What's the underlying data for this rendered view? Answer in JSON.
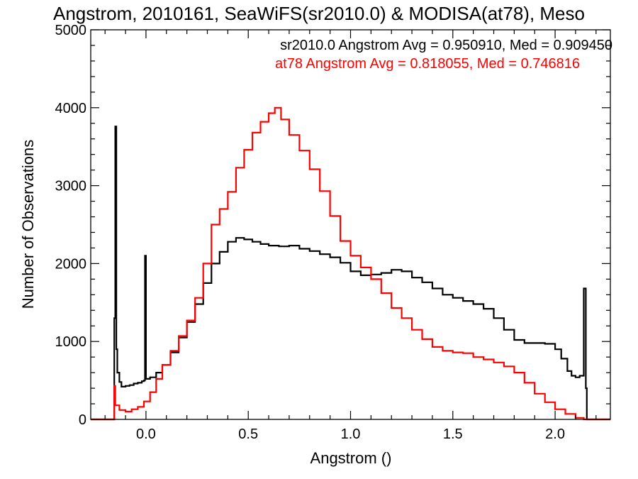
{
  "chart_data": {
    "type": "line",
    "step": true,
    "title": "Angstrom, 2010161, SeaWiFS(sr2010.0) & MODISA(at78), Meso",
    "xlabel": "Angstrom ()",
    "ylabel": "Number of Observations",
    "xlim": [
      -0.27,
      2.27
    ],
    "ylim": [
      0,
      5000
    ],
    "x_ticks": [
      0.0,
      0.5,
      1.0,
      1.5,
      2.0
    ],
    "x_tick_labels": [
      "0.0",
      "0.5",
      "1.0",
      "1.5",
      "2.0"
    ],
    "y_ticks": [
      0,
      1000,
      2000,
      3000,
      4000,
      5000
    ],
    "y_tick_labels": [
      "0",
      "1000",
      "2000",
      "3000",
      "4000",
      "5000"
    ],
    "grid": false,
    "annotations": [
      {
        "text": "sr2010.0 Angstrom Avg = 0.950910, Med = 0.909450",
        "color": "#000000"
      },
      {
        "text": "at78 Angstrom Avg = 0.818055, Med = 0.746816",
        "color": "#ff0000"
      }
    ],
    "series": [
      {
        "color": "#000000",
        "points": [
          [
            -0.27,
            0
          ],
          [
            -0.16,
            0
          ],
          [
            -0.155,
            1300
          ],
          [
            -0.15,
            3760
          ],
          [
            -0.145,
            900
          ],
          [
            -0.14,
            600
          ],
          [
            -0.13,
            480
          ],
          [
            -0.12,
            420
          ],
          [
            -0.1,
            430
          ],
          [
            -0.08,
            440
          ],
          [
            -0.06,
            460
          ],
          [
            -0.04,
            470
          ],
          [
            -0.02,
            490
          ],
          [
            -0.01,
            500
          ],
          [
            -0.005,
            2100
          ],
          [
            0.0,
            520
          ],
          [
            0.02,
            540
          ],
          [
            0.05,
            600
          ],
          [
            0.08,
            700
          ],
          [
            0.12,
            860
          ],
          [
            0.16,
            1050
          ],
          [
            0.2,
            1250
          ],
          [
            0.24,
            1480
          ],
          [
            0.28,
            1750
          ],
          [
            0.32,
            2000
          ],
          [
            0.36,
            2150
          ],
          [
            0.4,
            2280
          ],
          [
            0.44,
            2330
          ],
          [
            0.48,
            2310
          ],
          [
            0.52,
            2280
          ],
          [
            0.56,
            2250
          ],
          [
            0.6,
            2230
          ],
          [
            0.65,
            2220
          ],
          [
            0.7,
            2230
          ],
          [
            0.75,
            2190
          ],
          [
            0.8,
            2160
          ],
          [
            0.85,
            2120
          ],
          [
            0.9,
            2080
          ],
          [
            0.95,
            2010
          ],
          [
            1.0,
            1900
          ],
          [
            1.05,
            1850
          ],
          [
            1.1,
            1860
          ],
          [
            1.15,
            1880
          ],
          [
            1.2,
            1920
          ],
          [
            1.25,
            1900
          ],
          [
            1.3,
            1820
          ],
          [
            1.35,
            1760
          ],
          [
            1.4,
            1680
          ],
          [
            1.45,
            1600
          ],
          [
            1.5,
            1560
          ],
          [
            1.55,
            1520
          ],
          [
            1.6,
            1480
          ],
          [
            1.65,
            1420
          ],
          [
            1.7,
            1300
          ],
          [
            1.75,
            1150
          ],
          [
            1.8,
            1020
          ],
          [
            1.85,
            980
          ],
          [
            1.9,
            980
          ],
          [
            1.95,
            970
          ],
          [
            2.0,
            900
          ],
          [
            2.03,
            780
          ],
          [
            2.06,
            620
          ],
          [
            2.08,
            560
          ],
          [
            2.1,
            540
          ],
          [
            2.12,
            560
          ],
          [
            2.14,
            1680
          ],
          [
            2.15,
            400
          ],
          [
            2.155,
            0
          ],
          [
            2.27,
            0
          ]
        ]
      },
      {
        "color": "#ff0000",
        "points": [
          [
            -0.27,
            0
          ],
          [
            -0.16,
            0
          ],
          [
            -0.155,
            430
          ],
          [
            -0.15,
            180
          ],
          [
            -0.13,
            120
          ],
          [
            -0.1,
            100
          ],
          [
            -0.07,
            130
          ],
          [
            -0.04,
            160
          ],
          [
            -0.01,
            230
          ],
          [
            0.02,
            350
          ],
          [
            0.05,
            520
          ],
          [
            0.08,
            700
          ],
          [
            0.12,
            880
          ],
          [
            0.16,
            1070
          ],
          [
            0.2,
            1270
          ],
          [
            0.24,
            1560
          ],
          [
            0.28,
            2000
          ],
          [
            0.32,
            2500
          ],
          [
            0.36,
            2700
          ],
          [
            0.4,
            2920
          ],
          [
            0.44,
            3230
          ],
          [
            0.48,
            3460
          ],
          [
            0.52,
            3680
          ],
          [
            0.56,
            3820
          ],
          [
            0.6,
            3930
          ],
          [
            0.63,
            4000
          ],
          [
            0.66,
            3850
          ],
          [
            0.7,
            3650
          ],
          [
            0.75,
            3450
          ],
          [
            0.8,
            3210
          ],
          [
            0.85,
            2930
          ],
          [
            0.9,
            2610
          ],
          [
            0.95,
            2290
          ],
          [
            1.0,
            2100
          ],
          [
            1.05,
            1950
          ],
          [
            1.1,
            1800
          ],
          [
            1.15,
            1620
          ],
          [
            1.2,
            1430
          ],
          [
            1.25,
            1300
          ],
          [
            1.3,
            1150
          ],
          [
            1.35,
            1030
          ],
          [
            1.4,
            930
          ],
          [
            1.45,
            880
          ],
          [
            1.5,
            860
          ],
          [
            1.55,
            850
          ],
          [
            1.6,
            800
          ],
          [
            1.65,
            770
          ],
          [
            1.7,
            730
          ],
          [
            1.75,
            680
          ],
          [
            1.8,
            600
          ],
          [
            1.85,
            470
          ],
          [
            1.9,
            330
          ],
          [
            1.95,
            220
          ],
          [
            2.0,
            130
          ],
          [
            2.05,
            70
          ],
          [
            2.1,
            20
          ],
          [
            2.14,
            0
          ],
          [
            2.27,
            0
          ]
        ]
      }
    ]
  }
}
